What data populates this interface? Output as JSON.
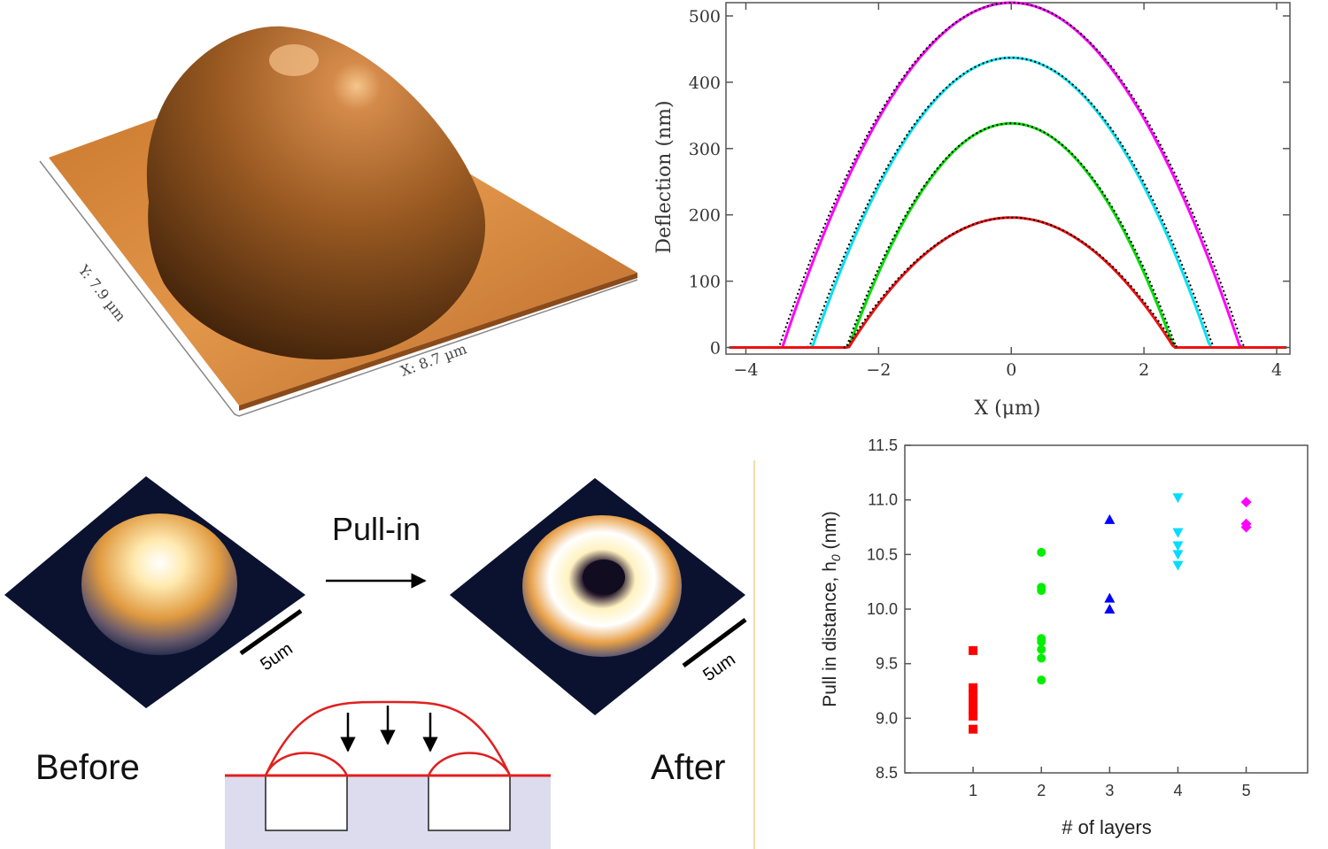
{
  "afm_3d": {
    "y_label": "Y: 7.9 µm",
    "x_label": "X: 8.7 µm",
    "colors": {
      "surface": "#d9893a",
      "dome_light": "#d48a4a",
      "dome_dark": "#3a1e08"
    }
  },
  "pullin": {
    "arrow_label": "Pull-in",
    "before_label": "Before",
    "after_label": "After",
    "scale_before": "5um",
    "scale_after": "5um",
    "colors": {
      "membrane": "#e02020",
      "substrate": "#dcdcee",
      "background": "#0b1230"
    }
  },
  "chart_data": [
    {
      "type": "line",
      "title": "",
      "xlabel": "X (μm)",
      "ylabel": "Deflection (nm)",
      "xlim": [
        -4.3,
        4.2
      ],
      "ylim": [
        -10,
        520
      ],
      "xticks": [
        "−4",
        "−2",
        "0",
        "2",
        "4"
      ],
      "xtick_values": [
        -4,
        -2,
        0,
        2,
        4
      ],
      "yticks": [
        "0",
        "100",
        "200",
        "300",
        "400",
        "500"
      ],
      "ytick_values": [
        0,
        100,
        200,
        300,
        400,
        500
      ],
      "grid": false,
      "series": [
        {
          "color": "#ff00ff",
          "peak": 520,
          "halfwidth": 3.45
        },
        {
          "color": "#00e0f0",
          "peak": 437,
          "halfwidth": 3.0
        },
        {
          "color": "#00dd00",
          "peak": 338,
          "halfwidth": 2.45
        },
        {
          "color": "#ee1010",
          "peak": 196,
          "halfwidth": 2.45
        }
      ],
      "fit_color": "#000000"
    },
    {
      "type": "scatter",
      "title": "",
      "xlabel": "# of layers",
      "ylabel": "Pull in distance, h",
      "ylabel_sub": "0",
      "ylabel_unit": " (nm)",
      "xlim": [
        0,
        5.9
      ],
      "ylim": [
        8.5,
        11.5
      ],
      "xticks": [
        "1",
        "2",
        "3",
        "4",
        "5"
      ],
      "xtick_values": [
        1,
        2,
        3,
        4,
        5
      ],
      "yticks": [
        "8.5",
        "9.0",
        "9.5",
        "10.0",
        "10.5",
        "11.0",
        "11.5"
      ],
      "ytick_values": [
        8.5,
        9.0,
        9.5,
        10.0,
        10.5,
        11.0,
        11.5
      ],
      "grid": false,
      "series": [
        {
          "layers": 1,
          "marker": "square",
          "color": "#ff0000",
          "values": [
            9.62,
            9.28,
            9.22,
            9.15,
            9.08,
            9.02,
            8.9
          ]
        },
        {
          "layers": 2,
          "marker": "circle",
          "color": "#00ee00",
          "values": [
            10.52,
            10.2,
            10.17,
            9.73,
            9.7,
            9.63,
            9.55,
            9.35
          ]
        },
        {
          "layers": 3,
          "marker": "triangle-up",
          "color": "#0000ff",
          "values": [
            10.82,
            10.1,
            10.0
          ]
        },
        {
          "layers": 4,
          "marker": "triangle-down",
          "color": "#00ddff",
          "values": [
            11.02,
            10.7,
            10.58,
            10.5,
            10.4
          ]
        },
        {
          "layers": 5,
          "marker": "diamond",
          "color": "#ff00ff",
          "values": [
            10.98,
            10.78,
            10.75
          ]
        }
      ]
    }
  ]
}
